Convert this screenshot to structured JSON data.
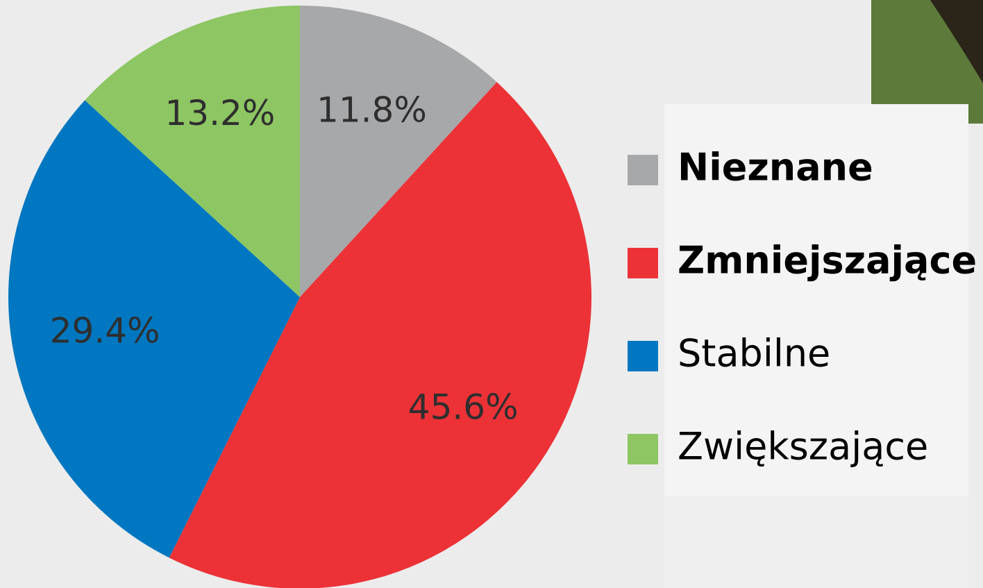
{
  "chart_data": {
    "type": "pie",
    "categories": [
      "Nieznane",
      "Zmniejszające",
      "Stabilne",
      "Zwiększające"
    ],
    "values": [
      11.8,
      45.6,
      29.4,
      13.2
    ],
    "value_labels": [
      "11.8%",
      "45.6%",
      "29.4%",
      "13.2%"
    ],
    "colors": [
      "#a7a8aa",
      "#ec3237",
      "#0077c0",
      "#8dc663"
    ]
  }
}
